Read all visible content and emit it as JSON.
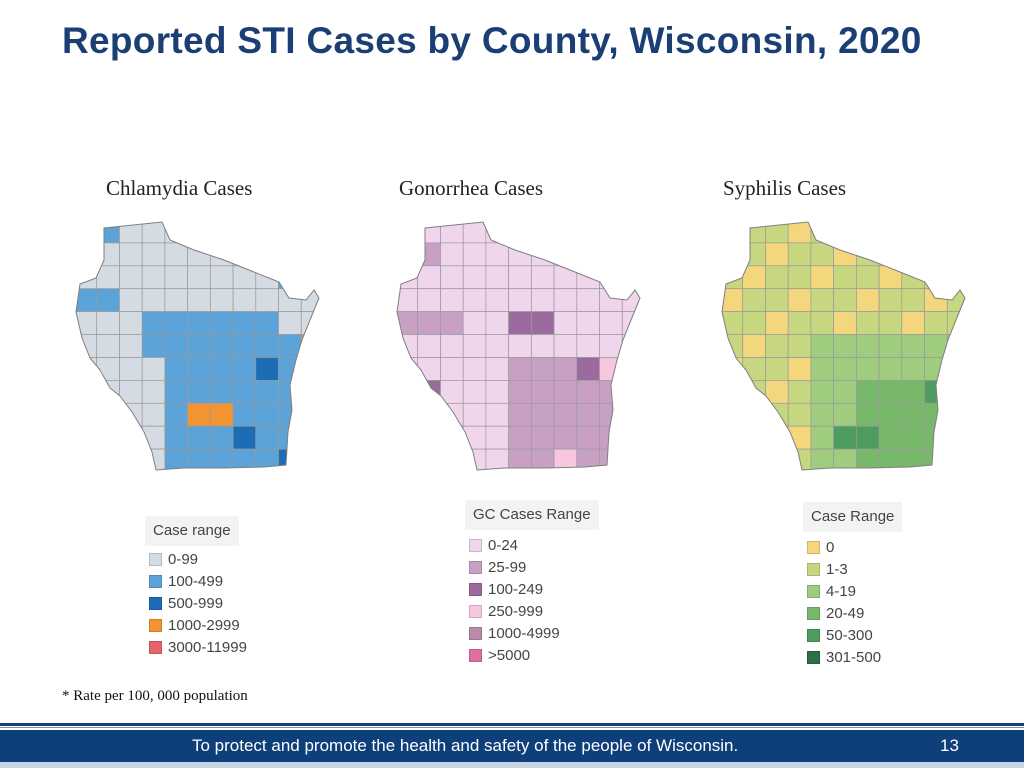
{
  "slide": {
    "title": "Reported STI Cases by County, Wisconsin, 2020",
    "footnote": "* Rate per 100, 000 population",
    "footer_text": "To protect and promote the health and safety of the people of Wisconsin.",
    "page_number": "13"
  },
  "maps": [
    {
      "title": "Chlamydia Cases",
      "legend_title": "Case range",
      "legend": [
        {
          "label": "0-99",
          "color": "#d4dbe2"
        },
        {
          "label": "100-499",
          "color": "#5ba3d9"
        },
        {
          "label": "500-999",
          "color": "#1c6db5"
        },
        {
          "label": "1000-2999",
          "color": "#f39432"
        },
        {
          "label": "3000-11999",
          "color": "#e5636b"
        }
      ]
    },
    {
      "title": "Gonorrhea Cases",
      "legend_title": "GC Cases Range",
      "legend": [
        {
          "label": "0-24",
          "color": "#efd6ec"
        },
        {
          "label": "25-99",
          "color": "#c7a0c3"
        },
        {
          "label": "100-249",
          "color": "#9b6a9e"
        },
        {
          "label": "250-999",
          "color": "#f7c7dd"
        },
        {
          "label": "1000-4999",
          "color": "#b98aa9"
        },
        {
          "label": ">5000",
          "color": "#e06e9f"
        }
      ]
    },
    {
      "title": "Syphilis Cases",
      "legend_title": "Case Range",
      "legend": [
        {
          "label": "0",
          "color": "#f4d77c"
        },
        {
          "label": "1-3",
          "color": "#c6d77f"
        },
        {
          "label": "4-19",
          "color": "#9fcc7f"
        },
        {
          "label": "20-49",
          "color": "#78b86a"
        },
        {
          "label": "50-300",
          "color": "#4e9c60"
        },
        {
          "label": "301-500",
          "color": "#2d6f48"
        }
      ]
    }
  ]
}
